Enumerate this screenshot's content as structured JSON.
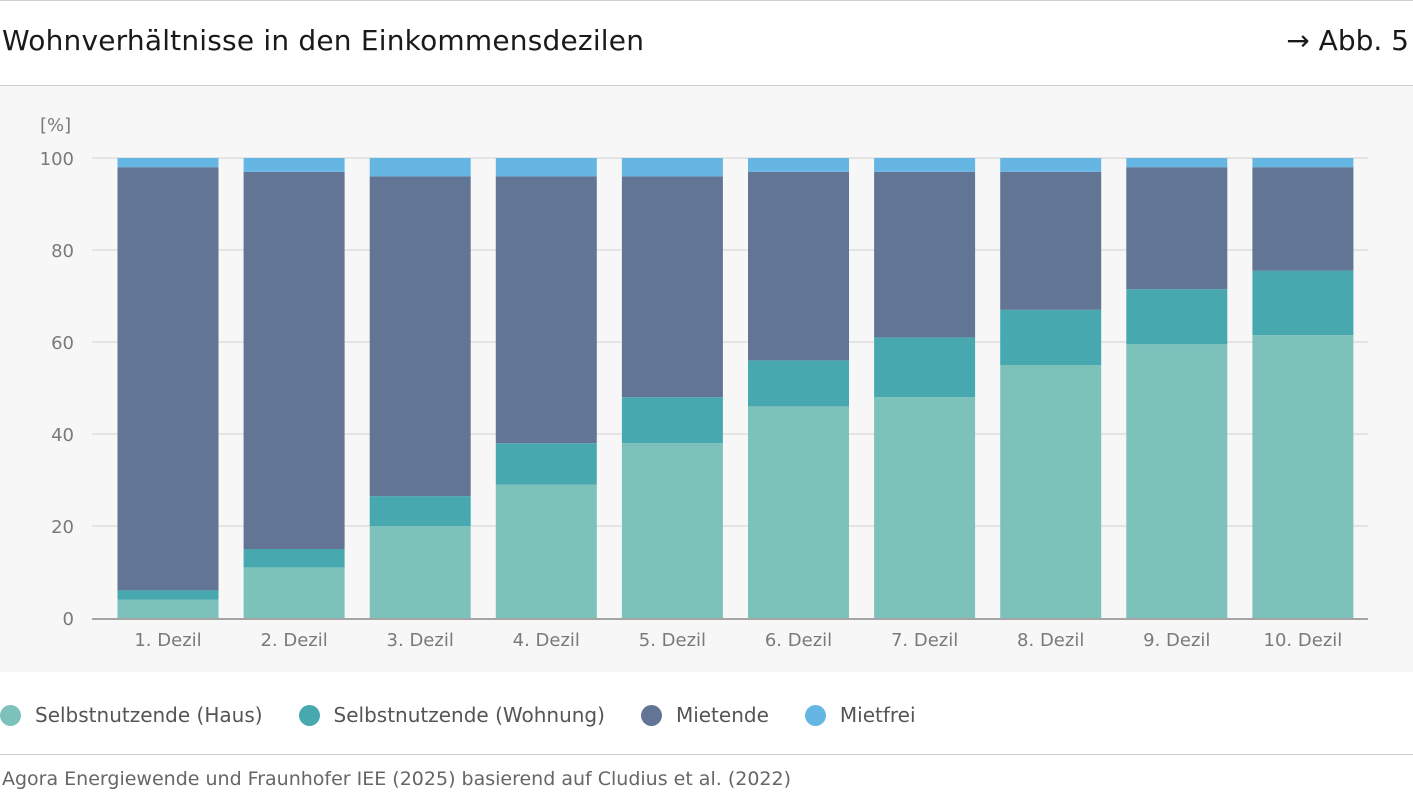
{
  "header": {
    "title": "Wohnverhältnisse in den Einkommensdezilen",
    "figure_ref": "→ Abb. 5"
  },
  "source": "Agora Energiewende und Fraunhofer IEE (2025) basierend auf Cludius et al. (2022)",
  "chart_data": {
    "type": "bar",
    "stacked": true,
    "ylabel": "[%]",
    "xlabel": "",
    "ylim": [
      0,
      100
    ],
    "yticks": [
      0,
      20,
      40,
      60,
      80,
      100
    ],
    "grid": true,
    "legend_position": "bottom-left",
    "categories": [
      "1. Dezil",
      "2. Dezil",
      "3. Dezil",
      "4. Dezil",
      "5. Dezil",
      "6. Dezil",
      "7. Dezil",
      "8. Dezil",
      "9. Dezil",
      "10. Dezil"
    ],
    "series": [
      {
        "name": "Selbstnutzende (Haus)",
        "color": "#7dc1bb",
        "values": [
          4,
          11,
          20,
          29,
          38,
          46,
          48,
          55,
          59.5,
          61.5
        ]
      },
      {
        "name": "Selbstnutzende (Wohnung)",
        "color": "#48a8b0",
        "values": [
          2,
          4,
          6.5,
          9,
          10,
          10,
          13,
          12,
          12,
          14
        ]
      },
      {
        "name": "Mietende",
        "color": "#627595",
        "values": [
          92,
          82,
          69.5,
          58,
          48,
          41,
          36,
          30,
          26.5,
          22.5
        ]
      },
      {
        "name": "Mietfrei",
        "color": "#66b6e4",
        "values": [
          2,
          3,
          4,
          4,
          4,
          3,
          3,
          3,
          2,
          2
        ]
      }
    ]
  }
}
